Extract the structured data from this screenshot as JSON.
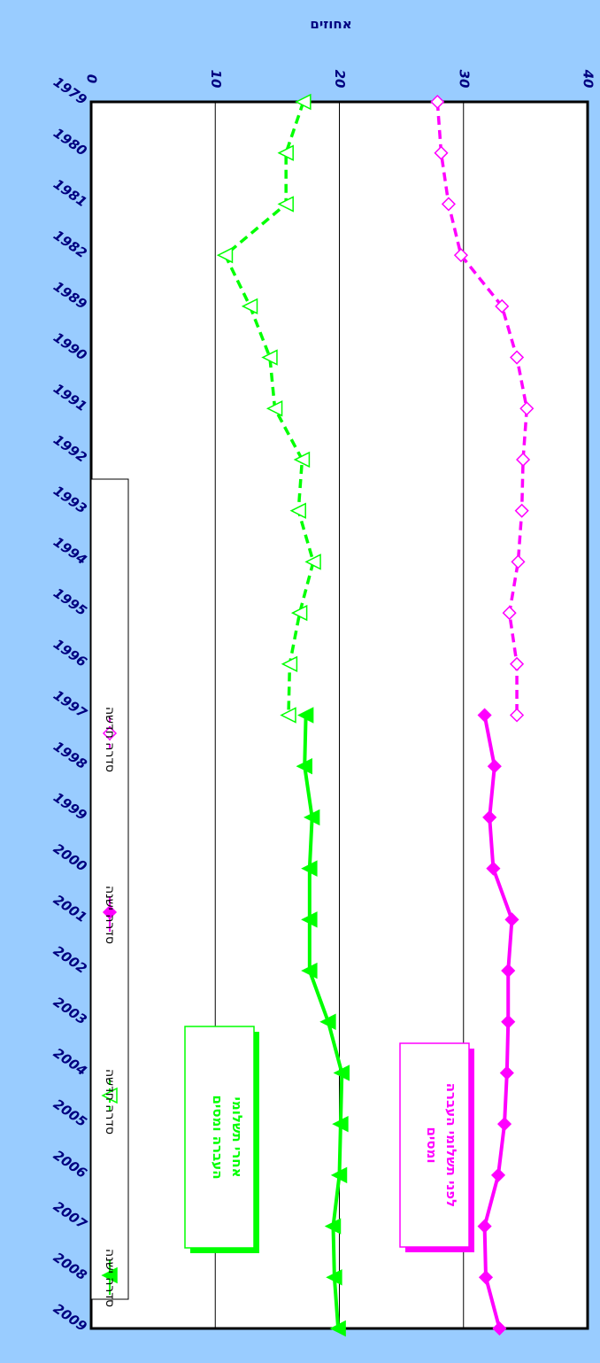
{
  "chart_data": {
    "type": "line",
    "title": "",
    "ylabel": "אחוזים",
    "xlabel": "",
    "ylim": [
      0,
      40
    ],
    "yticks": [
      0,
      10,
      20,
      30,
      40
    ],
    "grid": true,
    "categories": [
      "1979",
      "1980",
      "1981",
      "1982",
      "1989",
      "1990",
      "1991",
      "1992",
      "1993",
      "1994",
      "1995",
      "1996",
      "1997",
      "1998",
      "1999",
      "2000",
      "2001",
      "2002",
      "2003",
      "2004",
      "2005",
      "2006",
      "2007",
      "2008",
      "2009"
    ],
    "series": [
      {
        "name": "סדרה ישנה",
        "group": "before",
        "style": "dashed-open-diamond",
        "color": "#ff00ff",
        "values": [
          27.9,
          28.2,
          28.8,
          29.8,
          33.1,
          34.3,
          35.1,
          34.8,
          34.7,
          34.4,
          33.7,
          34.3,
          34.3,
          null,
          null,
          null,
          null,
          null,
          null,
          null,
          null,
          null,
          null,
          null,
          null
        ]
      },
      {
        "name": "סדרה חדשה",
        "group": "before",
        "style": "solid-filled-diamond",
        "color": "#ff00ff",
        "values": [
          null,
          null,
          null,
          null,
          null,
          null,
          null,
          null,
          null,
          null,
          null,
          null,
          31.7,
          32.5,
          32.1,
          32.4,
          33.9,
          33.6,
          33.6,
          33.5,
          33.3,
          32.8,
          31.7,
          31.8,
          32.9
        ]
      },
      {
        "name": "סדרה ישנה",
        "group": "after",
        "style": "dashed-open-triangle",
        "color": "#00ff00",
        "values": [
          17.1,
          15.7,
          15.7,
          10.8,
          12.8,
          14.4,
          14.8,
          17.0,
          16.7,
          17.9,
          16.8,
          16.0,
          15.9,
          null,
          null,
          null,
          null,
          null,
          null,
          null,
          null,
          null,
          null,
          null,
          null
        ]
      },
      {
        "name": "סדרה חדשה",
        "group": "after",
        "style": "solid-filled-triangle",
        "color": "#00ff00",
        "values": [
          null,
          null,
          null,
          null,
          null,
          null,
          null,
          null,
          null,
          null,
          null,
          null,
          17.3,
          17.2,
          17.8,
          17.6,
          17.6,
          17.6,
          19.1,
          20.2,
          20.1,
          20.0,
          19.5,
          19.6,
          19.9
        ]
      }
    ],
    "legend": {
      "position": "left",
      "entries": [
        "סדרה ישנה",
        "סדרה חדשה",
        "סדרה ישנה",
        "סדרה חדשה"
      ]
    },
    "annotations": [
      {
        "id": "before",
        "lines": [
          "לפני תשלומי העברה",
          "ומסים"
        ],
        "color": "#ff00ff"
      },
      {
        "id": "after",
        "lines": [
          "אחרי תשלומי",
          "העברה ומסים"
        ],
        "color": "#00ff00"
      }
    ]
  }
}
